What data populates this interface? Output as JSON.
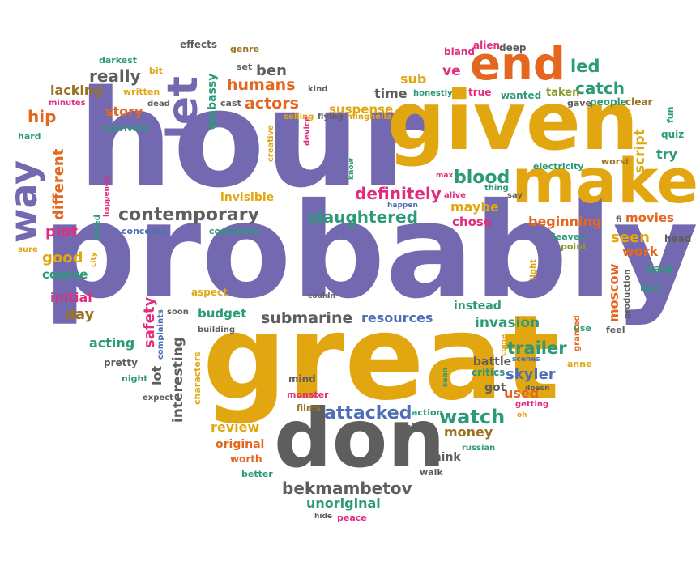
{
  "palette": {
    "purple": "#7369b0",
    "gold": "#e2a610",
    "gray": "#5e5e5e",
    "green": "#2b9a78",
    "orange": "#e4661f",
    "pink": "#e22d7e",
    "blue": "#4f6fb5",
    "brown": "#9a7222",
    "olive": "#8c9a2a"
  },
  "words": [
    {
      "text": "probably",
      "color": "purple"
    },
    {
      "text": "hour",
      "color": "purple"
    },
    {
      "text": "great",
      "color": "gold"
    },
    {
      "text": "given",
      "color": "gold"
    },
    {
      "text": "don",
      "color": "gray"
    },
    {
      "text": "make",
      "color": "gold"
    },
    {
      "text": "let",
      "color": "purple"
    },
    {
      "text": "end",
      "color": "orange"
    },
    {
      "text": "way",
      "color": "purple"
    },
    {
      "text": "contemporary",
      "color": "gray"
    },
    {
      "text": "slaughtered",
      "color": "green"
    },
    {
      "text": "definitely",
      "color": "pink"
    },
    {
      "text": "blood",
      "color": "green"
    },
    {
      "text": "bekmambetov",
      "color": "gray"
    },
    {
      "text": "submarine",
      "color": "gray"
    },
    {
      "text": "attacked",
      "color": "blue"
    },
    {
      "text": "watch",
      "color": "green"
    },
    {
      "text": "trailer",
      "color": "green"
    },
    {
      "text": "invasion",
      "color": "green"
    },
    {
      "text": "resources",
      "color": "blue"
    },
    {
      "text": "skyler",
      "color": "blue"
    },
    {
      "text": "interesting",
      "color": "gray"
    },
    {
      "text": "different",
      "color": "orange"
    },
    {
      "text": "humans",
      "color": "orange"
    },
    {
      "text": "actors",
      "color": "orange"
    },
    {
      "text": "catch",
      "color": "green"
    },
    {
      "text": "really",
      "color": "gray"
    },
    {
      "text": "ben",
      "color": "gray"
    },
    {
      "text": "led",
      "color": "green"
    },
    {
      "text": "time",
      "color": "gray"
    },
    {
      "text": "sub",
      "color": "gold"
    },
    {
      "text": "ve",
      "color": "pink"
    },
    {
      "text": "suspense",
      "color": "gold"
    },
    {
      "text": "embassy",
      "color": "green"
    },
    {
      "text": "story",
      "color": "orange"
    },
    {
      "text": "lacking",
      "color": "brown"
    },
    {
      "text": "hip",
      "color": "orange"
    },
    {
      "text": "plot",
      "color": "pink"
    },
    {
      "text": "good",
      "color": "gold"
    },
    {
      "text": "course",
      "color": "green"
    },
    {
      "text": "initial",
      "color": "pink"
    },
    {
      "text": "day",
      "color": "brown"
    },
    {
      "text": "acting",
      "color": "green"
    },
    {
      "text": "safety",
      "color": "pink"
    },
    {
      "text": "lot",
      "color": "gray"
    },
    {
      "text": "budget",
      "color": "green"
    },
    {
      "text": "review",
      "color": "gold"
    },
    {
      "text": "original",
      "color": "orange"
    },
    {
      "text": "money",
      "color": "brown"
    },
    {
      "text": "unoriginal",
      "color": "green"
    },
    {
      "text": "used",
      "color": "orange"
    },
    {
      "text": "maybe",
      "color": "gold"
    },
    {
      "text": "chose",
      "color": "pink"
    },
    {
      "text": "beginning",
      "color": "orange"
    },
    {
      "text": "movies",
      "color": "orange"
    },
    {
      "text": "seen",
      "color": "gold"
    },
    {
      "text": "work",
      "color": "orange"
    },
    {
      "text": "saw",
      "color": "green"
    },
    {
      "text": "moscow",
      "color": "orange"
    },
    {
      "text": "script",
      "color": "gold"
    },
    {
      "text": "try",
      "color": "green"
    },
    {
      "text": "invisible",
      "color": "gold"
    },
    {
      "text": "think",
      "color": "gray"
    },
    {
      "text": "wise",
      "color": "gray"
    },
    {
      "text": "mind",
      "color": "gray"
    },
    {
      "text": "films",
      "color": "brown"
    },
    {
      "text": "monster",
      "color": "pink"
    },
    {
      "text": "action",
      "color": "green"
    },
    {
      "text": "got",
      "color": "gray"
    },
    {
      "text": "critics",
      "color": "green"
    },
    {
      "text": "battle",
      "color": "gray"
    },
    {
      "text": "instead",
      "color": "green"
    },
    {
      "text": "bad",
      "color": "green"
    },
    {
      "text": "head",
      "color": "gray"
    },
    {
      "text": "leaves",
      "color": "green"
    },
    {
      "text": "point",
      "color": "olive"
    },
    {
      "text": "quiz",
      "color": "green"
    },
    {
      "text": "fun",
      "color": "green"
    },
    {
      "text": "worst",
      "color": "brown"
    },
    {
      "text": "gave",
      "color": "gray"
    },
    {
      "text": "people",
      "color": "green"
    },
    {
      "text": "clear",
      "color": "brown"
    },
    {
      "text": "taken",
      "color": "olive"
    },
    {
      "text": "wanted",
      "color": "green"
    },
    {
      "text": "true",
      "color": "pink"
    },
    {
      "text": "honestly",
      "color": "green"
    },
    {
      "text": "bland",
      "color": "pink"
    },
    {
      "text": "alien",
      "color": "pink"
    },
    {
      "text": "deep",
      "color": "gray"
    },
    {
      "text": "effects",
      "color": "gray"
    },
    {
      "text": "genre",
      "color": "brown"
    },
    {
      "text": "darkest",
      "color": "green"
    },
    {
      "text": "bit",
      "color": "gold"
    },
    {
      "text": "written",
      "color": "gold"
    },
    {
      "text": "minutes",
      "color": "pink"
    },
    {
      "text": "dead",
      "color": "gray"
    },
    {
      "text": "survivors",
      "color": "green"
    },
    {
      "text": "hard",
      "color": "green"
    },
    {
      "text": "cast",
      "color": "gray"
    },
    {
      "text": "set",
      "color": "gray"
    },
    {
      "text": "kind",
      "color": "gray"
    },
    {
      "text": "selling",
      "color": "gold"
    },
    {
      "text": "flying",
      "color": "gray"
    },
    {
      "text": "minghella",
      "color": "gold"
    },
    {
      "text": "device",
      "color": "pink"
    },
    {
      "text": "creative",
      "color": "gold"
    },
    {
      "text": "happened",
      "color": "pink"
    },
    {
      "text": "killed",
      "color": "green"
    },
    {
      "text": "city",
      "color": "gold"
    },
    {
      "text": "sure",
      "color": "gold"
    },
    {
      "text": "concepts",
      "color": "blue"
    },
    {
      "text": "conceived",
      "color": "green"
    },
    {
      "text": "aspect",
      "color": "gold"
    },
    {
      "text": "couldn",
      "color": "gray"
    },
    {
      "text": "soon",
      "color": "gray"
    },
    {
      "text": "building",
      "color": "gray"
    },
    {
      "text": "complaints",
      "color": "blue"
    },
    {
      "text": "characters",
      "color": "gold"
    },
    {
      "text": "pretty",
      "color": "gray"
    },
    {
      "text": "night",
      "color": "green"
    },
    {
      "text": "expect",
      "color": "gray"
    },
    {
      "text": "worth",
      "color": "orange"
    },
    {
      "text": "better",
      "color": "green"
    },
    {
      "text": "walk",
      "color": "gray"
    },
    {
      "text": "russian",
      "color": "green"
    },
    {
      "text": "hide",
      "color": "gray"
    },
    {
      "text": "peace",
      "color": "pink"
    },
    {
      "text": "sean",
      "color": "green"
    },
    {
      "text": "getting",
      "color": "pink"
    },
    {
      "text": "oh",
      "color": "gold"
    },
    {
      "text": "doesn",
      "color": "gray"
    },
    {
      "text": "anne",
      "color": "gold"
    },
    {
      "text": "scenes",
      "color": "blue"
    },
    {
      "text": "come",
      "color": "gold"
    },
    {
      "text": "granted",
      "color": "orange"
    },
    {
      "text": "feel",
      "color": "gray"
    },
    {
      "text": "use",
      "color": "green"
    },
    {
      "text": "production",
      "color": "gray"
    },
    {
      "text": "light",
      "color": "gold"
    },
    {
      "text": "electricity",
      "color": "green"
    },
    {
      "text": "max",
      "color": "pink"
    },
    {
      "text": "alive",
      "color": "pink"
    },
    {
      "text": "thing",
      "color": "green"
    },
    {
      "text": "say",
      "color": "gray"
    },
    {
      "text": "know",
      "color": "green"
    },
    {
      "text": "happen",
      "color": "blue"
    },
    {
      "text": "fi",
      "color": "gray"
    }
  ]
}
